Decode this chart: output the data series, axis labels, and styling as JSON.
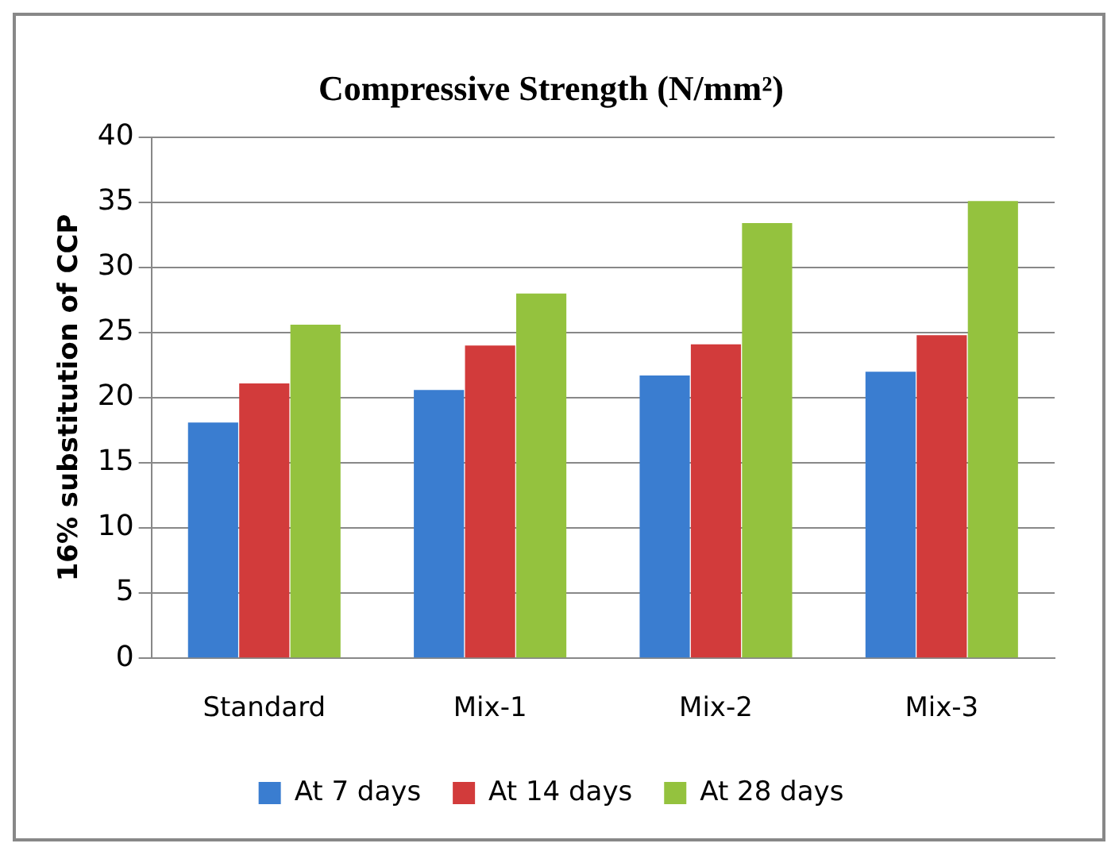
{
  "chart_data": {
    "type": "bar",
    "title": "Compressive Strength (N/mm²)",
    "ylabel": "16% substitution of CCP",
    "categories": [
      "Standard",
      "Mix-1",
      "Mix-2",
      "Mix-3"
    ],
    "series": [
      {
        "name": "At 7 days",
        "color": "#3a7dd0",
        "values": [
          18.1,
          20.6,
          21.7,
          22
        ]
      },
      {
        "name": "At 14 days",
        "color": "#d23b3b",
        "values": [
          21.1,
          24,
          24.1,
          24.8
        ]
      },
      {
        "name": "At 28 days",
        "color": "#94c23e",
        "values": [
          25.6,
          28,
          33.4,
          35.1
        ]
      }
    ],
    "ylim": [
      0,
      40
    ],
    "yticks": [
      0,
      5,
      10,
      15,
      20,
      25,
      30,
      35,
      40
    ],
    "grid": "y",
    "legend": "bottom"
  }
}
